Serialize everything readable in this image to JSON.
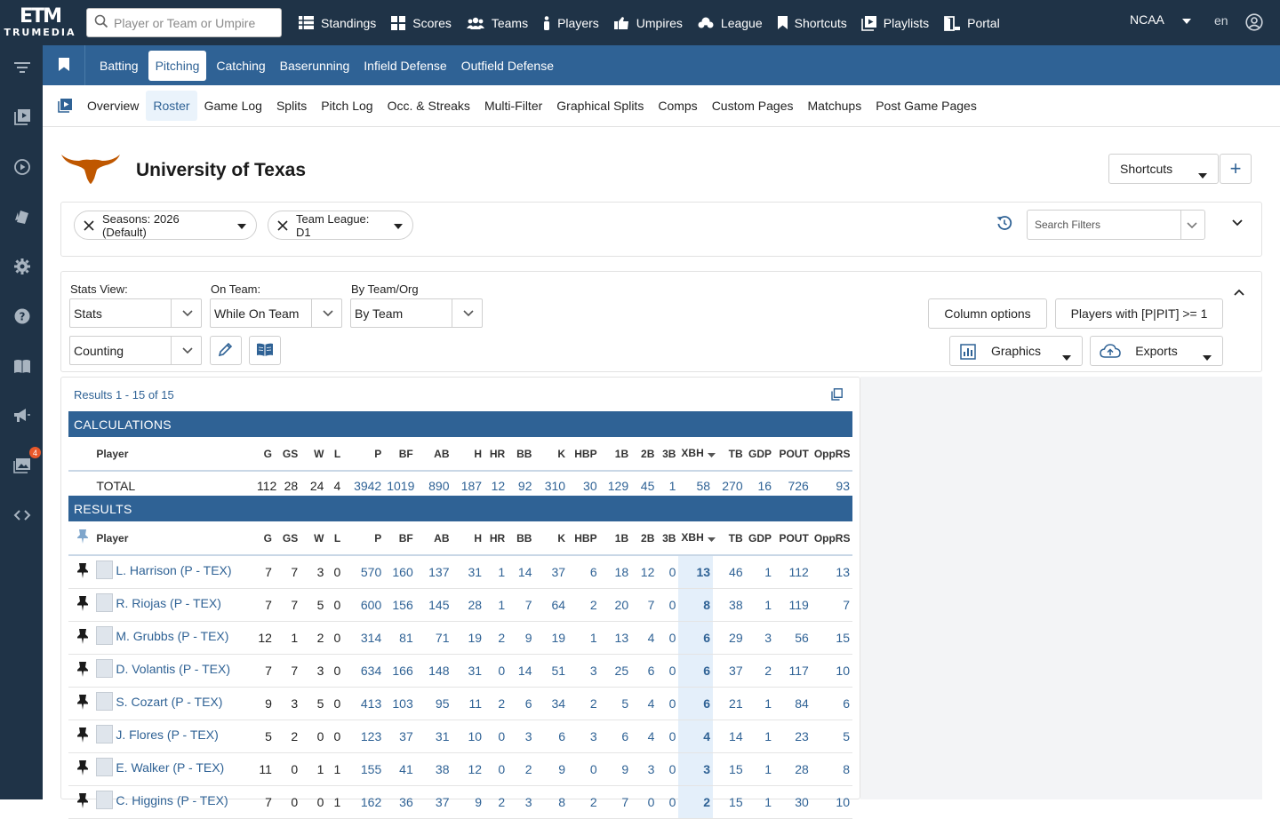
{
  "brand": {
    "mark": "ETM",
    "name": "TRUMEDIA"
  },
  "search": {
    "placeholder": "Player or Team or Umpire"
  },
  "topnav": [
    {
      "label": "Standings",
      "icon": "table-icon"
    },
    {
      "label": "Scores",
      "icon": "grid-icon"
    },
    {
      "label": "Teams",
      "icon": "users-icon"
    },
    {
      "label": "Players",
      "icon": "person-icon"
    },
    {
      "label": "Umpires",
      "icon": "thumbs-icon"
    },
    {
      "label": "League",
      "icon": "league-icon"
    },
    {
      "label": "Shortcuts",
      "icon": "bookmark-icon"
    },
    {
      "label": "Playlists",
      "icon": "playlist-icon"
    },
    {
      "label": "Portal",
      "icon": "portal-icon"
    }
  ],
  "org": {
    "selected": "NCAA"
  },
  "language": "en",
  "notifications": {
    "count": "4"
  },
  "tabs": {
    "primary": [
      "Batting",
      "Pitching",
      "Catching",
      "Baserunning",
      "Infield Defense",
      "Outfield Defense"
    ],
    "primary_active": "Pitching",
    "secondary": [
      "Overview",
      "Roster",
      "Game Log",
      "Splits",
      "Pitch Log",
      "Occ. & Streaks",
      "Multi-Filter",
      "Graphical Splits",
      "Comps",
      "Custom Pages",
      "Matchups",
      "Post Game Pages"
    ],
    "secondary_active": "Roster"
  },
  "team": {
    "name": "University of Texas",
    "color": "#bf5700"
  },
  "header": {
    "shortcuts_label": "Shortcuts",
    "add_label": "+"
  },
  "filters": {
    "chips": [
      "Seasons: 2026 (Default)",
      "Team League: D1"
    ],
    "search_placeholder": "Search Filters"
  },
  "options": {
    "stats_view": {
      "label": "Stats View:",
      "value": "Stats"
    },
    "on_team": {
      "label": "On Team:",
      "value": "While On Team"
    },
    "by_team": {
      "label": "By Team/Org",
      "value": "By Team"
    },
    "stat_type": {
      "value": "Counting"
    },
    "column_options_label": "Column options",
    "players_filter_label": "Players with [P|PIT] >= 1",
    "graphics_label": "Graphics",
    "exports_label": "Exports"
  },
  "results": {
    "count_text": "Results 1 - 15 of 15",
    "calculations_title": "CALCULATIONS",
    "results_title": "RESULTS",
    "columns": [
      "Player",
      "G",
      "GS",
      "W",
      "L",
      "P",
      "BF",
      "AB",
      "H",
      "HR",
      "BB",
      "K",
      "HBP",
      "1B",
      "2B",
      "3B",
      "XBH",
      "TB",
      "GDP",
      "POUT",
      "OppRS"
    ],
    "sorted_column": "XBH",
    "total": {
      "label": "TOTAL",
      "values": [
        "112",
        "28",
        "24",
        "4",
        "3942",
        "1019",
        "890",
        "187",
        "12",
        "92",
        "310",
        "30",
        "129",
        "45",
        "1",
        "58",
        "270",
        "16",
        "726",
        "93"
      ]
    },
    "rows": [
      {
        "player": "L. Harrison (P - TEX)",
        "values": [
          "7",
          "7",
          "3",
          "0",
          "570",
          "160",
          "137",
          "31",
          "1",
          "14",
          "37",
          "6",
          "18",
          "12",
          "0",
          "13",
          "46",
          "1",
          "112",
          "13"
        ]
      },
      {
        "player": "R. Riojas (P - TEX)",
        "values": [
          "7",
          "7",
          "5",
          "0",
          "600",
          "156",
          "145",
          "28",
          "1",
          "7",
          "64",
          "2",
          "20",
          "7",
          "0",
          "8",
          "38",
          "1",
          "119",
          "7"
        ]
      },
      {
        "player": "M. Grubbs (P - TEX)",
        "values": [
          "12",
          "1",
          "2",
          "0",
          "314",
          "81",
          "71",
          "19",
          "2",
          "9",
          "19",
          "1",
          "13",
          "4",
          "0",
          "6",
          "29",
          "3",
          "56",
          "15"
        ]
      },
      {
        "player": "D. Volantis (P - TEX)",
        "values": [
          "7",
          "7",
          "3",
          "0",
          "634",
          "166",
          "148",
          "31",
          "0",
          "14",
          "51",
          "3",
          "25",
          "6",
          "0",
          "6",
          "37",
          "2",
          "117",
          "10"
        ]
      },
      {
        "player": "S. Cozart (P - TEX)",
        "values": [
          "9",
          "3",
          "5",
          "0",
          "413",
          "103",
          "95",
          "11",
          "2",
          "6",
          "34",
          "2",
          "5",
          "4",
          "0",
          "6",
          "21",
          "1",
          "84",
          "6"
        ]
      },
      {
        "player": "J. Flores (P - TEX)",
        "values": [
          "5",
          "2",
          "0",
          "0",
          "123",
          "37",
          "31",
          "10",
          "0",
          "3",
          "6",
          "3",
          "6",
          "4",
          "0",
          "4",
          "14",
          "1",
          "23",
          "5"
        ]
      },
      {
        "player": "E. Walker (P - TEX)",
        "values": [
          "11",
          "0",
          "1",
          "1",
          "155",
          "41",
          "38",
          "12",
          "0",
          "2",
          "9",
          "0",
          "9",
          "3",
          "0",
          "3",
          "15",
          "1",
          "28",
          "8"
        ]
      },
      {
        "player": "C. Higgins (P - TEX)",
        "values": [
          "7",
          "0",
          "0",
          "1",
          "162",
          "36",
          "37",
          "9",
          "2",
          "3",
          "8",
          "2",
          "7",
          "0",
          "0",
          "2",
          "15",
          "1",
          "30",
          "10"
        ]
      }
    ]
  }
}
